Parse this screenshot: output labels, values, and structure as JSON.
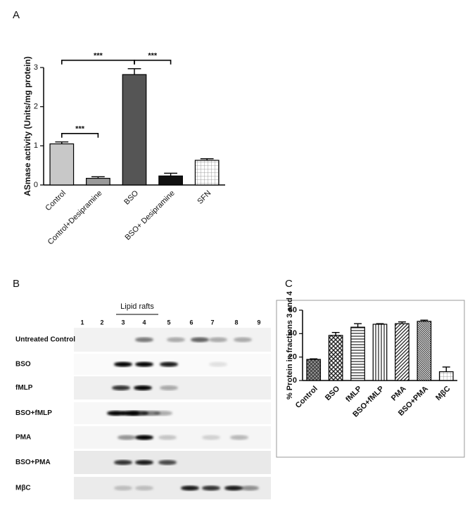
{
  "panel_labels": [
    "A",
    "B",
    "C"
  ],
  "chart_data": [
    {
      "type": "bar",
      "y_label": "ASmase activity (Units/mg protein)",
      "categories": [
        "Control",
        "Control+Desipramine",
        "BSO",
        "BSO+ Desipramine",
        "SFN"
      ],
      "values": [
        1.05,
        0.17,
        2.82,
        0.23,
        0.63
      ],
      "errors": [
        0.05,
        0.04,
        0.15,
        0.07,
        0.04
      ],
      "colors": [
        "#c8c8c8",
        "#9a9a9a",
        "#555555",
        "#111111",
        "#ffffff"
      ],
      "patterns": [
        "solid",
        "solid",
        "solid",
        "solid",
        "grid"
      ],
      "ylim": [
        0,
        3
      ],
      "yticks": [
        0,
        1,
        2,
        3
      ],
      "annotations": [
        {
          "label": "***",
          "from": "Control",
          "to": "BSO"
        },
        {
          "label": "***",
          "from": "BSO",
          "to": "BSO+ Desipramine"
        },
        {
          "label": "***",
          "from": "Control",
          "to": "Control+Desipramine"
        }
      ]
    },
    {
      "type": "bar",
      "y_label": "% Protein in fractions 3 and 4",
      "categories": [
        "Control",
        "BSO",
        "fMLP",
        "BSO+fMLP",
        "PMA",
        "BSO+PMA",
        "MβC"
      ],
      "values": [
        18,
        38.5,
        45.5,
        48,
        48.5,
        50.5,
        7.5
      ],
      "errors": [
        0.5,
        2.5,
        3,
        0.5,
        1.5,
        1,
        4
      ],
      "colors": [
        "#333333",
        "#333333",
        "#333333",
        "#333333",
        "#333333",
        "#333333",
        "#333333"
      ],
      "patterns": [
        "crosshatch",
        "checker",
        "hlines",
        "vlines",
        "diag",
        "diag-dense",
        "grid"
      ],
      "ylim": [
        0,
        60
      ],
      "yticks": [
        0,
        20,
        40,
        60
      ]
    }
  ],
  "blot": {
    "title": "Lipid rafts",
    "lanes": [
      "1",
      "2",
      "3",
      "4",
      "5",
      "6",
      "7",
      "8",
      "9"
    ],
    "rows": [
      "Untreated Control",
      "BSO",
      "fMLP",
      "BSO+fMLP",
      "PMA",
      "BSO+PMA",
      "MβC"
    ]
  }
}
